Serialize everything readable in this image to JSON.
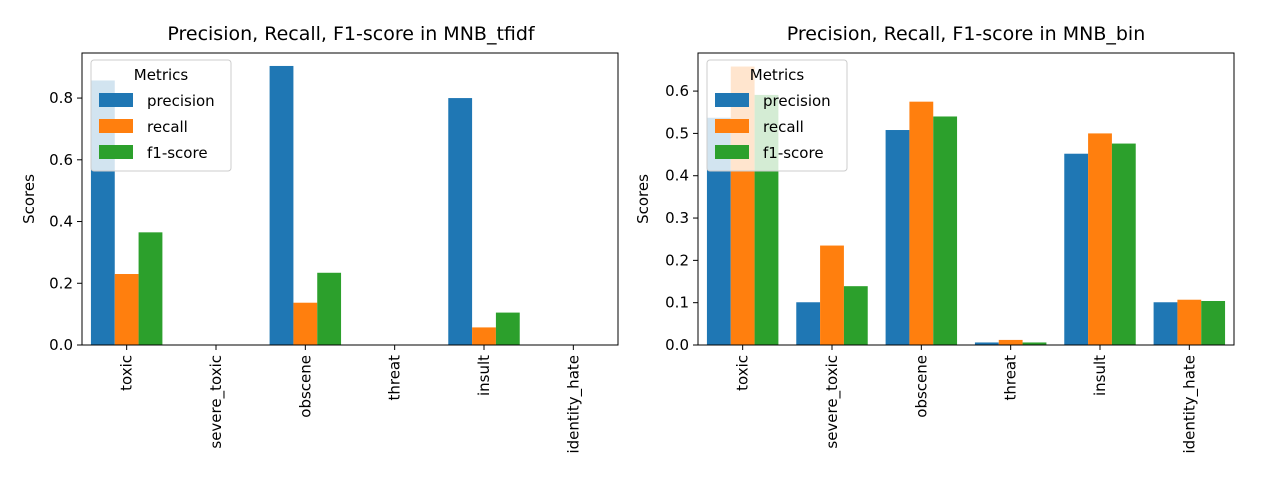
{
  "chart_data": [
    {
      "type": "bar",
      "title": "Precision, Recall, F1-score in MNB_tfidf",
      "xlabel": "",
      "ylabel": "Scores",
      "categories": [
        "toxic",
        "severe_toxic",
        "obscene",
        "threat",
        "insult",
        "identity_hate"
      ],
      "ylim": [
        0,
        0.946
      ],
      "yticks": [
        "0.0",
        "0.2",
        "0.4",
        "0.6",
        "0.8"
      ],
      "legend": {
        "title": "Metrics",
        "placement": "top-left"
      },
      "grid": false,
      "series": [
        {
          "name": "precision",
          "color": "#1f77b4",
          "values": [
            0.857,
            0.0,
            0.904,
            0.0,
            0.8,
            0.0
          ]
        },
        {
          "name": "recall",
          "color": "#ff7f0e",
          "values": [
            0.23,
            0.0,
            0.137,
            0.0,
            0.057,
            0.0
          ]
        },
        {
          "name": "f1-score",
          "color": "#2ca02c",
          "values": [
            0.365,
            0.0,
            0.234,
            0.0,
            0.105,
            0.0
          ]
        }
      ]
    },
    {
      "type": "bar",
      "title": "Precision, Recall, F1-score in MNB_bin",
      "xlabel": "",
      "ylabel": "Scores",
      "categories": [
        "toxic",
        "severe_toxic",
        "obscene",
        "threat",
        "insult",
        "identity_hate"
      ],
      "ylim": [
        0,
        0.69
      ],
      "yticks": [
        "0.0",
        "0.1",
        "0.2",
        "0.3",
        "0.4",
        "0.5",
        "0.6"
      ],
      "legend": {
        "title": "Metrics",
        "placement": "top-left"
      },
      "grid": false,
      "series": [
        {
          "name": "precision",
          "color": "#1f77b4",
          "values": [
            0.537,
            0.101,
            0.508,
            0.006,
            0.452,
            0.101
          ]
        },
        {
          "name": "recall",
          "color": "#ff7f0e",
          "values": [
            0.658,
            0.235,
            0.575,
            0.012,
            0.5,
            0.107
          ]
        },
        {
          "name": "f1-score",
          "color": "#2ca02c",
          "values": [
            0.591,
            0.139,
            0.54,
            0.006,
            0.476,
            0.104
          ]
        }
      ]
    }
  ]
}
